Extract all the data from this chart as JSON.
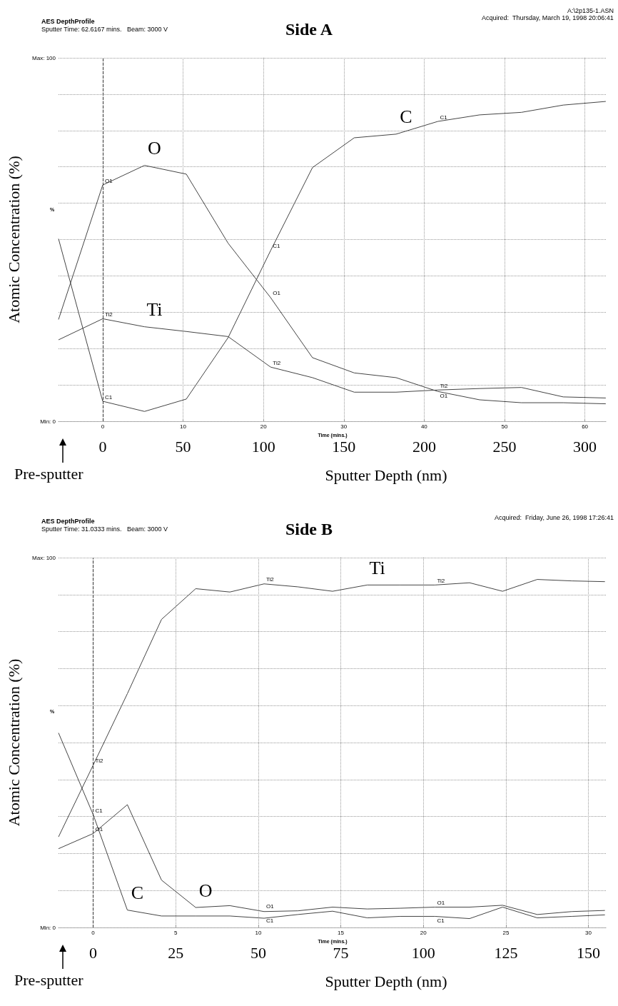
{
  "chart_data": [
    {
      "type": "line",
      "title": "Side A",
      "subtitle": "AES DepthProfile",
      "xlabel": "Time (mins.)",
      "ylabel": "Atomic Concentration (%)",
      "x2label": "Sputter Depth (nm)",
      "annotations": [
        "Sputter Time: 62.6167 mins.   Beam: 3000 V",
        "A:\\2p135-1.ASN",
        "Acquired:  Thursday, March 19, 1998 20:06:41",
        "%",
        "Pre-sputter",
        {
          "text": "O",
          "x": 5.2,
          "y": 70.4
        },
        {
          "text": "C",
          "x": 36.5,
          "y": 79
        },
        {
          "text": "Ti",
          "x": 5.2,
          "y": 26
        },
        {
          "text": "O1",
          "x": 0,
          "y": 65
        },
        {
          "text": "Ti2",
          "x": 0,
          "y": 28.2
        },
        {
          "text": "C1",
          "x": 0,
          "y": 5.5
        },
        {
          "text": "C1",
          "x": 20.9,
          "y": 47
        },
        {
          "text": "O1",
          "x": 20.9,
          "y": 34
        },
        {
          "text": "Ti2",
          "x": 20.9,
          "y": 14.9
        },
        {
          "text": "C1",
          "x": 41.7,
          "y": 82.5
        },
        {
          "text": "O1",
          "x": 41.7,
          "y": 8.2
        },
        {
          "text": "Ti2",
          "x": 41.7,
          "y": 8.6
        }
      ],
      "x": [
        -5.5,
        0,
        5.2,
        10.4,
        15.6,
        20.9,
        26.1,
        31.3,
        36.5,
        41.7,
        46.9,
        52.1,
        57.3,
        62.6
      ],
      "series": [
        {
          "color": "#444444",
          "values": [
            50.2,
            5.5,
            2.7,
            6.1,
            23,
            47,
            69.8,
            78,
            79,
            82.5,
            84.3,
            85,
            87,
            88
          ]
        },
        {
          "color": "#444444",
          "values": [
            28,
            65,
            70.4,
            68,
            49,
            34,
            17.5,
            13.3,
            12,
            8.2,
            5.9,
            5.1,
            5.1,
            4.8
          ]
        },
        {
          "color": "#444444",
          "values": [
            22.4,
            28.2,
            26,
            24.7,
            23.3,
            14.9,
            12,
            8,
            8,
            8.6,
            9,
            9.3,
            6.7,
            6.4
          ]
        }
      ],
      "xlim": [
        -5.5,
        62.7
      ],
      "xticks": [
        0,
        10,
        20,
        30,
        40,
        50,
        60
      ],
      "x2lim": [
        -27.5,
        313.5
      ],
      "x2ticks": [
        0,
        50,
        100,
        150,
        200,
        250,
        300
      ],
      "ylim": [
        0,
        100
      ],
      "yticks": [
        {
          "value": 0,
          "label": "Min: 0"
        },
        {
          "value": 10,
          "label": null
        },
        {
          "value": 20,
          "label": null
        },
        {
          "value": 30,
          "label": null
        },
        {
          "value": 40,
          "label": null
        },
        {
          "value": 50,
          "label": null
        },
        {
          "value": 60,
          "label": null
        },
        {
          "value": 70,
          "label": null
        },
        {
          "value": 80,
          "label": null
        },
        {
          "value": 90,
          "label": null
        },
        {
          "value": 100,
          "label": "Max: 100"
        }
      ],
      "grid": true,
      "marker": "none",
      "line_style": "solid",
      "ref_lines": [
        {
          "axis": "x",
          "value": 0,
          "line_style": "dashed"
        }
      ]
    },
    {
      "type": "line",
      "title": "Side B",
      "subtitle": "AES DepthProfile",
      "xlabel": "Time (mins.)",
      "ylabel": "Atomic Concentration (%)",
      "x2label": "Sputter Depth (nm)",
      "annotations": [
        "Sputter Time: 31.0333 mins.   Beam: 3000 V",
        "Acquired:  Friday, June 26, 1998 17:26:41",
        "%",
        "Pre-sputter",
        {
          "text": "Ti",
          "x": 16.6,
          "y": 92.6
        },
        {
          "text": "C",
          "x": 2.07,
          "y": 4.7
        },
        {
          "text": "O",
          "x": 6.21,
          "y": 5.4
        },
        {
          "text": "Ti2",
          "x": 0,
          "y": 43.9
        },
        {
          "text": "C1",
          "x": 0,
          "y": 30.5
        },
        {
          "text": "O1",
          "x": 0,
          "y": 25.4
        },
        {
          "text": "Ti2",
          "x": 10.35,
          "y": 92.9
        },
        {
          "text": "O1",
          "x": 10.35,
          "y": 4.5
        },
        {
          "text": "C1",
          "x": 10.35,
          "y": 3
        },
        {
          "text": "Ti2",
          "x": 20.7,
          "y": 92.6
        },
        {
          "text": "O1",
          "x": 20.7,
          "y": 5.5
        },
        {
          "text": "C1",
          "x": 20.7,
          "y": 3
        }
      ],
      "x": [
        -2.1,
        0,
        2.07,
        4.14,
        6.21,
        8.28,
        10.35,
        12.4,
        14.5,
        16.6,
        18.6,
        20.7,
        22.8,
        24.8,
        26.9,
        29,
        31
      ],
      "series": [
        {
          "color": "#444444",
          "values": [
            24.5,
            43.9,
            63.2,
            83.3,
            91.6,
            90.7,
            92.9,
            92.1,
            90.9,
            92.6,
            92.6,
            92.6,
            93.2,
            90.9,
            94.1,
            93.7,
            93.5
          ]
        },
        {
          "color": "#444444",
          "values": [
            52.6,
            30.5,
            4.7,
            3.1,
            3.1,
            3.1,
            2.5,
            3.5,
            4.4,
            2.6,
            3,
            3,
            2.4,
            5.5,
            2.6,
            3,
            3.4
          ]
        },
        {
          "color": "#444444",
          "values": [
            21.3,
            25.4,
            33.2,
            12.8,
            5.4,
            5.9,
            4.3,
            4.5,
            5.5,
            5,
            5.2,
            5.5,
            5.5,
            6,
            3.5,
            4.3,
            4.6
          ]
        }
      ],
      "xlim": [
        -2.1,
        31.1
      ],
      "xticks": [
        0,
        5,
        10,
        15,
        20,
        25,
        30
      ],
      "x2lim": [
        -10.5,
        155.5
      ],
      "x2ticks": [
        0,
        25,
        50,
        75,
        100,
        125,
        150
      ],
      "ylim": [
        0,
        100
      ],
      "yticks": [
        {
          "value": 0,
          "label": "Min: 0"
        },
        {
          "value": 10,
          "label": null
        },
        {
          "value": 20,
          "label": null
        },
        {
          "value": 30,
          "label": null
        },
        {
          "value": 40,
          "label": null
        },
        {
          "value": 50,
          "label": null
        },
        {
          "value": 60,
          "label": null
        },
        {
          "value": 70,
          "label": null
        },
        {
          "value": 80,
          "label": null
        },
        {
          "value": 90,
          "label": null
        },
        {
          "value": 100,
          "label": "Max: 100"
        }
      ],
      "grid": true,
      "marker": "none",
      "line_style": "solid",
      "ref_lines": [
        {
          "axis": "x",
          "value": 0,
          "line_style": "dashed"
        }
      ]
    }
  ]
}
